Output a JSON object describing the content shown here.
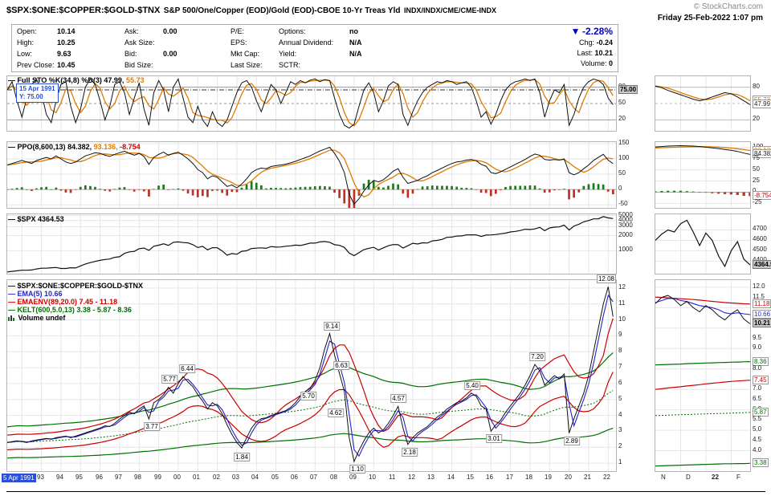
{
  "header": {
    "symbol": "$SPX:$ONE:$COPPER:$GOLD-$TNX",
    "description": "S&P 500/One/Copper (EOD)/Gold (EOD)-CBOE 10-Yr Treas Yld",
    "exchanges": "INDX/INDX/CME/CME-INDX",
    "copyright": "© StockCharts.com",
    "datetime": "Friday 25-Feb-2022 1:07 pm"
  },
  "quote": {
    "cells": [
      {
        "label": "Open:",
        "value": "10.14"
      },
      {
        "label": "Ask:",
        "value": "0.00"
      },
      {
        "label": "P/E:",
        "value": ""
      },
      {
        "label": "Options:",
        "value": "no"
      },
      {
        "label": "High:",
        "value": "10.25"
      },
      {
        "label": "Ask Size:",
        "value": ""
      },
      {
        "label": "EPS:",
        "value": ""
      },
      {
        "label": "Annual Dividend:",
        "value": "N/A"
      },
      {
        "label": "Low:",
        "value": "9.63"
      },
      {
        "label": "Bid:",
        "value": "0.00"
      },
      {
        "label": "Mkt Cap:",
        "value": ""
      },
      {
        "label": "Yield:",
        "value": "N/A"
      },
      {
        "label": "Prev Close:",
        "value": "10.45"
      },
      {
        "label": "Bid Size:",
        "value": ""
      },
      {
        "label": "Last Size:",
        "value": ""
      },
      {
        "label": "SCTR:",
        "value": ""
      }
    ],
    "change": {
      "dir": "▼",
      "pct": "-2.28%",
      "chg_label": "Chg:",
      "chg": "-0.24",
      "last_label": "Last:",
      "last": "10.21",
      "vol_label": "Volume:",
      "vol": "0"
    }
  },
  "tooltip": {
    "date": "15 Apr 1991",
    "y": "Y: 75.00"
  },
  "legends": {
    "sto": {
      "dash": "—",
      "name": "Full STO %K(34,8) %D(3)",
      "v1": "47.99,",
      "v2": "55.73"
    },
    "ppo": {
      "dash": "—",
      "name": "PPO(8,600,13)",
      "v1": "84.382,",
      "v2": "93.136,",
      "v3": "-8.754"
    },
    "spx": {
      "dash": "—",
      "name": "$SPX",
      "v1": "4364.53"
    },
    "main": [
      {
        "dash": "—",
        "text": "$SPX:$ONE:$COPPER:$GOLD-$TNX"
      },
      {
        "dash": "—",
        "text": "EMA(5) 10.66"
      },
      {
        "dash": "—",
        "text": "EMAENV(89,20.0) 7.45 - 11.18"
      },
      {
        "dash": "—",
        "text": "KELT(600,5.0,13) 3.38 - 5.87 - 8.36"
      },
      {
        "dash": "",
        "text": "Volume undef"
      }
    ]
  },
  "xaxis": {
    "start_label": "5 Apr 1991",
    "years": [
      "93",
      "94",
      "95",
      "96",
      "97",
      "98",
      "99",
      "00",
      "01",
      "02",
      "03",
      "04",
      "05",
      "06",
      "07",
      "08",
      "09",
      "10",
      "11",
      "12",
      "13",
      "14",
      "15",
      "16",
      "17",
      "18",
      "19",
      "20",
      "21",
      "22"
    ],
    "thumb": [
      "N",
      "D",
      "22",
      "F"
    ]
  },
  "colors": {
    "black_series": "#111111",
    "blue_series": "#2222cc",
    "red_series": "#cc0000",
    "green_series": "#007000",
    "orange_series": "#e07b00",
    "down_blue": "#0000cc",
    "tooltip_blue": "#2a4fd8",
    "hist_green": "#1c7a1c",
    "hist_red": "#c03020"
  },
  "chart_data": {
    "type": "line",
    "x": {
      "start": 1991.25,
      "step": 0.25,
      "count": 125
    },
    "panels_meta": [
      {
        "title": "Full STO %K(34,8) %D(3)",
        "type": "line",
        "yticks": [
          80,
          50,
          20
        ],
        "crosshair_y": 75
      },
      {
        "title": "PPO(8,600,13)",
        "type": "line+histogram",
        "yticks": [
          150,
          100,
          50,
          0,
          -50
        ]
      },
      {
        "title": "$SPX",
        "type": "line",
        "scale": "log",
        "yticks": [
          5000,
          4000,
          3000,
          2000,
          1000
        ]
      },
      {
        "title": "$SPX:$ONE:$COPPER:$GOLD-$TNX",
        "type": "line",
        "yticks": [
          12,
          11,
          10,
          9,
          8,
          7,
          6,
          5,
          4,
          3,
          2,
          1
        ]
      }
    ],
    "series": {
      "sto_k": [
        75,
        90,
        55,
        25,
        60,
        85,
        95,
        70,
        30,
        15,
        55,
        85,
        90,
        45,
        15,
        40,
        80,
        95,
        85,
        55,
        20,
        45,
        85,
        90,
        70,
        30,
        60,
        88,
        40,
        10,
        70,
        92,
        75,
        35,
        80,
        95,
        60,
        25,
        15,
        45,
        20,
        8,
        35,
        15,
        8,
        20,
        45,
        70,
        88,
        92,
        80,
        55,
        35,
        60,
        85,
        75,
        50,
        70,
        90,
        85,
        92,
        88,
        93,
        95,
        90,
        94,
        92,
        60,
        30,
        10,
        5,
        12,
        45,
        75,
        88,
        70,
        35,
        55,
        82,
        90,
        85,
        30,
        10,
        35,
        55,
        70,
        80,
        85,
        90,
        88,
        92,
        90,
        85,
        88,
        90,
        80,
        55,
        25,
        35,
        12,
        30,
        55,
        75,
        85,
        90,
        92,
        95,
        92,
        95,
        70,
        25,
        55,
        75,
        70,
        85,
        10,
        30,
        60,
        80,
        90,
        95,
        92,
        85,
        60,
        47.99
      ],
      "ppo": [
        80,
        85,
        90,
        95,
        90,
        85,
        95,
        100,
        105,
        100,
        110,
        100,
        90,
        85,
        90,
        100,
        110,
        115,
        120,
        118,
        112,
        108,
        115,
        120,
        125,
        118,
        112,
        118,
        108,
        82,
        105,
        115,
        122,
        112,
        118,
        122,
        112,
        100,
        85,
        65,
        55,
        35,
        45,
        40,
        25,
        10,
        15,
        5,
        18,
        35,
        55,
        65,
        70,
        68,
        75,
        78,
        80,
        83,
        87,
        92,
        98,
        104,
        110,
        118,
        126,
        132,
        138,
        118,
        92,
        55,
        -15,
        -48,
        -30,
        -5,
        15,
        30,
        25,
        32,
        45,
        60,
        68,
        40,
        20,
        25,
        30,
        38,
        45,
        55,
        62,
        70,
        78,
        85,
        90,
        92,
        96,
        98,
        94,
        82,
        76,
        55,
        52,
        58,
        66,
        74,
        82,
        90,
        98,
        108,
        116,
        112,
        98,
        96,
        98,
        96,
        100,
        55,
        48,
        55,
        68,
        80,
        95,
        105,
        115,
        96,
        84.382
      ],
      "spx": [
        380,
        390,
        400,
        410,
        410,
        415,
        435,
        450,
        450,
        460,
        465,
        445,
        445,
        460,
        455,
        500,
        545,
        580,
        615,
        645,
        670,
        685,
        740,
        760,
        885,
        950,
        970,
        1100,
        1130,
        1020,
        1230,
        1290,
        1370,
        1280,
        1470,
        1500,
        1455,
        1435,
        1320,
        1160,
        1225,
        1040,
        1150,
        1145,
        990,
        815,
        880,
        850,
        975,
        1000,
        1110,
        1125,
        1140,
        1115,
        1210,
        1180,
        1190,
        1230,
        1250,
        1295,
        1270,
        1335,
        1420,
        1420,
        1500,
        1525,
        1470,
        1320,
        1280,
        1165,
        900,
        800,
        920,
        1055,
        1115,
        1170,
        1030,
        1140,
        1255,
        1325,
        1320,
        1130,
        1255,
        1410,
        1360,
        1440,
        1425,
        1570,
        1605,
        1680,
        1850,
        1870,
        1960,
        1970,
        2060,
        2070,
        2065,
        1920,
        2045,
        2060,
        2100,
        2170,
        2240,
        2360,
        2425,
        2520,
        2675,
        2640,
        2720,
        2915,
        2505,
        2835,
        2940,
        2975,
        3230,
        2585,
        3100,
        3365,
        3755,
        3975,
        4300,
        4310,
        4765,
        4500,
        4364.53
      ],
      "ratio": [
        2.3,
        2.35,
        2.4,
        2.35,
        2.3,
        2.4,
        2.45,
        2.5,
        2.55,
        2.5,
        2.6,
        2.65,
        2.7,
        2.6,
        2.7,
        2.8,
        2.9,
        3.0,
        3.1,
        3.2,
        3.35,
        3.3,
        3.5,
        3.77,
        4.0,
        4.2,
        4.1,
        4.4,
        4.6,
        3.77,
        4.8,
        5.0,
        5.3,
        5.77,
        5.4,
        6.0,
        6.44,
        6.1,
        5.8,
        5.3,
        4.9,
        4.4,
        4.8,
        4.6,
        4.1,
        3.4,
        2.8,
        2.3,
        1.95,
        2.6,
        3.2,
        3.6,
        3.8,
        3.85,
        4.0,
        4.1,
        4.2,
        4.3,
        4.5,
        4.8,
        5.2,
        5.5,
        5.7,
        6.2,
        7.0,
        8.2,
        9.14,
        7.8,
        6.63,
        5.5,
        2.6,
        1.1,
        1.8,
        2.4,
        2.9,
        3.2,
        2.9,
        3.1,
        3.5,
        4.0,
        4.57,
        3.2,
        2.18,
        2.6,
        2.9,
        3.1,
        3.3,
        3.6,
        3.9,
        4.1,
        4.4,
        4.6,
        4.8,
        4.9,
        5.1,
        5.4,
        5.2,
        4.6,
        4.4,
        3.01,
        3.4,
        3.7,
        4.2,
        4.6,
        5.0,
        5.4,
        5.9,
        6.5,
        7.2,
        6.8,
        5.9,
        6.2,
        6.5,
        6.3,
        6.6,
        2.89,
        3.8,
        4.6,
        5.4,
        6.5,
        8.0,
        9.5,
        11.0,
        12.08,
        10.21
      ]
    },
    "thumb": {
      "sto_k": [
        82,
        79,
        74,
        70,
        66,
        62,
        58,
        55,
        58,
        62,
        66,
        70,
        68,
        62,
        55,
        48
      ],
      "ppo": [
        101,
        102,
        103,
        103.5,
        104,
        103.5,
        103,
        102,
        100.5,
        99,
        97.5,
        95.5,
        93.5,
        91,
        87.5,
        84.382
      ],
      "ppo_sig": [
        99,
        99.4,
        99.9,
        100.4,
        100.9,
        101.3,
        101.6,
        101.7,
        101.6,
        101.3,
        100.7,
        99.8,
        98.6,
        97.1,
        95.3,
        93.136
      ],
      "spx": [
        4600,
        4660,
        4700,
        4680,
        4760,
        4793,
        4680,
        4550,
        4670,
        4600,
        4450,
        4350,
        4500,
        4587,
        4420,
        4364.53
      ],
      "price": [
        11.2,
        11.5,
        11.6,
        11.4,
        11.1,
        11.3,
        11.0,
        10.8,
        11.1,
        10.9,
        10.6,
        10.4,
        10.7,
        10.9,
        10.45,
        10.21
      ],
      "ema": [
        11.25,
        11.35,
        11.45,
        11.45,
        11.35,
        11.3,
        11.2,
        11.1,
        11.05,
        11.0,
        10.9,
        10.75,
        10.7,
        10.75,
        10.7,
        10.66
      ],
      "env_up": [
        11.52,
        11.5,
        11.48,
        11.46,
        11.44,
        11.42,
        11.4,
        11.37,
        11.34,
        11.31,
        11.28,
        11.25,
        11.23,
        11.21,
        11.19,
        11.18
      ],
      "env_lo": [
        7.0,
        7.03,
        7.07,
        7.1,
        7.13,
        7.17,
        7.2,
        7.23,
        7.27,
        7.3,
        7.33,
        7.36,
        7.39,
        7.41,
        7.43,
        7.45
      ],
      "kelt_up": [
        8.2,
        8.21,
        8.22,
        8.23,
        8.24,
        8.26,
        8.27,
        8.28,
        8.29,
        8.3,
        8.31,
        8.32,
        8.33,
        8.34,
        8.35,
        8.36
      ],
      "kelt_mid": [
        5.72,
        5.73,
        5.74,
        5.75,
        5.76,
        5.77,
        5.78,
        5.79,
        5.8,
        5.81,
        5.82,
        5.83,
        5.84,
        5.85,
        5.86,
        5.87
      ],
      "kelt_lo": [
        3.25,
        3.26,
        3.27,
        3.28,
        3.29,
        3.3,
        3.31,
        3.32,
        3.33,
        3.34,
        3.35,
        3.36,
        3.36,
        3.37,
        3.37,
        3.38
      ]
    },
    "ticks": {
      "sto": [
        {
          "v": 80,
          "t": "80"
        },
        {
          "v": 75,
          "t": "75.00",
          "box": "inv"
        },
        {
          "v": 50,
          "t": "50"
        },
        {
          "v": 20,
          "t": "20"
        }
      ],
      "ppo": [
        {
          "v": 150,
          "t": "150"
        },
        {
          "v": 100,
          "t": "100"
        },
        {
          "v": 50,
          "t": "50"
        },
        {
          "v": 0,
          "t": "0"
        },
        {
          "v": -50,
          "t": "-50"
        }
      ],
      "spx": [
        {
          "v": 5000,
          "t": "5000"
        },
        {
          "v": 4000,
          "t": "4000"
        },
        {
          "v": 3000,
          "t": "3000"
        },
        {
          "v": 2000,
          "t": "2000"
        },
        {
          "v": 1000,
          "t": "1000"
        }
      ],
      "main": [
        {
          "v": 12,
          "t": "12"
        },
        {
          "v": 11,
          "t": "11"
        },
        {
          "v": 10,
          "t": "10"
        },
        {
          "v": 9,
          "t": "9"
        },
        {
          "v": 8,
          "t": "8"
        },
        {
          "v": 7,
          "t": "7"
        },
        {
          "v": 6,
          "t": "6"
        },
        {
          "v": 5,
          "t": "5"
        },
        {
          "v": 4,
          "t": "4"
        },
        {
          "v": 3,
          "t": "3"
        },
        {
          "v": 2,
          "t": "2"
        },
        {
          "v": 1,
          "t": "1"
        }
      ],
      "t_sto": [
        {
          "v": 80,
          "t": "80"
        },
        {
          "v": 55.73,
          "t": "55.73",
          "box": "orange"
        },
        {
          "v": 47.99,
          "t": "47.99",
          "box": "plain"
        },
        {
          "v": 20,
          "t": "20"
        }
      ],
      "t_ppo": [
        {
          "v": 100,
          "t": "100"
        },
        {
          "v": 93.136,
          "t": "93.136",
          "box": "orange"
        },
        {
          "v": 84.382,
          "t": "84.382",
          "box": "plain"
        },
        {
          "v": 75,
          "t": "75"
        },
        {
          "v": 50,
          "t": "50"
        },
        {
          "v": 25,
          "t": "25"
        },
        {
          "v": 0,
          "t": "0"
        },
        {
          "v": -8.754,
          "t": "-8.754",
          "box": "red"
        },
        {
          "v": -25,
          "t": "-25"
        }
      ],
      "t_spx": [
        {
          "v": 4700,
          "t": "4700"
        },
        {
          "v": 4600,
          "t": "4600"
        },
        {
          "v": 4500,
          "t": "4500"
        },
        {
          "v": 4400,
          "t": "4400"
        },
        {
          "v": 4364.53,
          "t": "4364.53",
          "box": "inv"
        }
      ],
      "t_main": [
        {
          "v": 12,
          "t": "12.0"
        },
        {
          "v": 11.5,
          "t": "11.5"
        },
        {
          "v": 11.18,
          "t": "11.18",
          "box": "red"
        },
        {
          "v": 10.66,
          "t": "10.66",
          "box": "blue"
        },
        {
          "v": 10.21,
          "t": "10.21",
          "box": "inv"
        },
        {
          "v": 9.5,
          "t": "9.5"
        },
        {
          "v": 9,
          "t": "9.0"
        },
        {
          "v": 8.36,
          "t": "8.36",
          "box": "green"
        },
        {
          "v": 8,
          "t": "8.0"
        },
        {
          "v": 7.45,
          "t": "7.45",
          "box": "red"
        },
        {
          "v": 7,
          "t": "7.0"
        },
        {
          "v": 6.5,
          "t": "6.5"
        },
        {
          "v": 6,
          "t": "6.0"
        },
        {
          "v": 5.87,
          "t": "5.87",
          "box": "green"
        },
        {
          "v": 5.5,
          "t": "5.5"
        },
        {
          "v": 5,
          "t": "5.0"
        },
        {
          "v": 4.5,
          "t": "4.5"
        },
        {
          "v": 4,
          "t": "4.0"
        },
        {
          "v": 3.38,
          "t": "3.38",
          "box": "green"
        }
      ]
    },
    "annotations": [
      {
        "text": "5.77",
        "year": 1999.6,
        "value": 5.77,
        "side": "a"
      },
      {
        "text": "6.44",
        "year": 2000.5,
        "value": 6.44,
        "side": "a"
      },
      {
        "text": "3.77",
        "year": 1998.7,
        "value": 3.77,
        "side": "b"
      },
      {
        "text": "1.84",
        "year": 2003.3,
        "value": 1.84,
        "side": "b"
      },
      {
        "text": "5.70",
        "year": 2006.7,
        "value": 5.7,
        "side": "b"
      },
      {
        "text": "9.14",
        "year": 2007.9,
        "value": 9.14,
        "side": "a"
      },
      {
        "text": "6.63",
        "year": 2008.4,
        "value": 6.63,
        "side": "a"
      },
      {
        "text": "4.62",
        "year": 2008.1,
        "value": 4.62,
        "side": "b"
      },
      {
        "text": "1.10",
        "year": 2009.2,
        "value": 1.1,
        "side": "b"
      },
      {
        "text": "4.57",
        "year": 2011.3,
        "value": 4.57,
        "side": "a"
      },
      {
        "text": "2.18",
        "year": 2011.9,
        "value": 2.18,
        "side": "b"
      },
      {
        "text": "5.40",
        "year": 2015.1,
        "value": 5.4,
        "side": "a"
      },
      {
        "text": "3.01",
        "year": 2016.2,
        "value": 3.01,
        "side": "b"
      },
      {
        "text": "7.20",
        "year": 2018.4,
        "value": 7.2,
        "side": "a"
      },
      {
        "text": "2.89",
        "year": 2020.2,
        "value": 2.89,
        "side": "b"
      },
      {
        "text": "12.08",
        "year": 2021.95,
        "value": 12.08,
        "side": "a"
      }
    ]
  }
}
